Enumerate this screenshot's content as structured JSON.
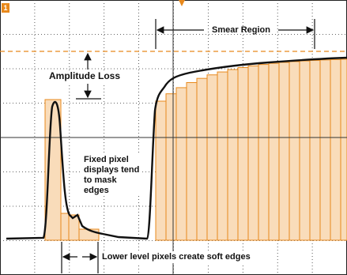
{
  "marker": "1",
  "annotations": {
    "smear_region": "Smear Region",
    "amplitude_loss": "Amplitude Loss",
    "fixed_pixel": [
      "Fixed pixel",
      "displays tend",
      "to mask",
      "edges"
    ],
    "lower_level": "Lower level pixels create soft edges"
  }
}
